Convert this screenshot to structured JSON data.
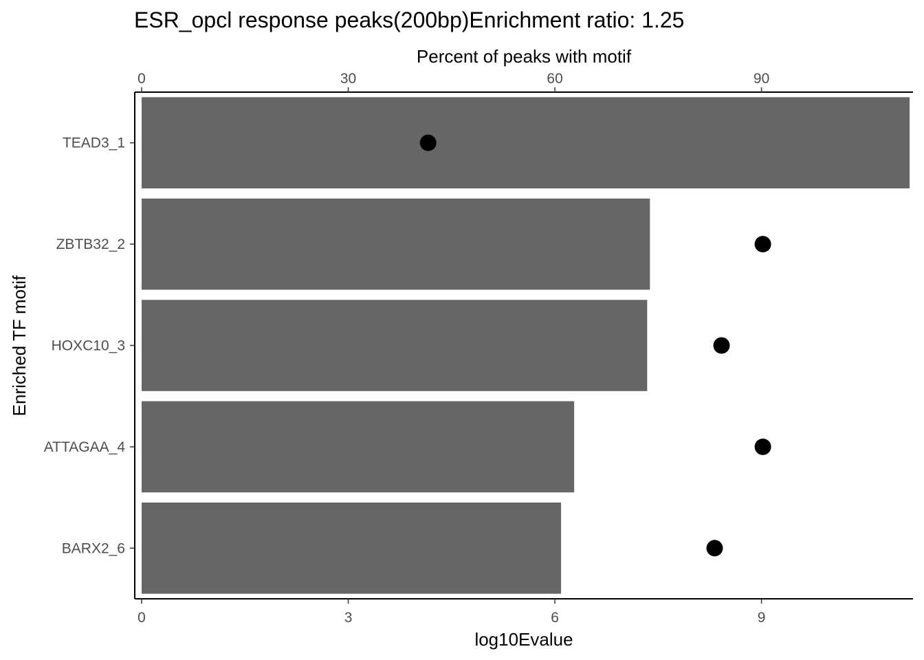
{
  "chart_data": {
    "type": "bar",
    "title": "ESR_opcl response peaks(200bp)Enrichment ratio: 1.25",
    "orientation": "horizontal",
    "ylabel": "Enriched TF motif",
    "categories": [
      "TEAD3_1",
      "ZBTB32_2",
      "HOXC10_3",
      "ATTAGAA_4",
      "BARX2_6"
    ],
    "bottom_axis": {
      "label": "log10Evalue",
      "range": [
        -0.1,
        11.2
      ],
      "ticks": [
        0,
        3,
        6,
        9
      ],
      "tick_labels": [
        "0",
        "3",
        "6",
        "9"
      ]
    },
    "top_axis": {
      "label": "Percent of peaks with motif",
      "range": [
        -1,
        112
      ],
      "ticks": [
        0,
        30,
        60,
        90
      ],
      "tick_labels": [
        "0",
        "30",
        "60",
        "90"
      ]
    },
    "series": [
      {
        "mark": "bar",
        "axis": "bottom",
        "color": "#666666",
        "values": [
          11.15,
          7.38,
          7.34,
          6.28,
          6.09
        ]
      },
      {
        "mark": "point",
        "axis": "top",
        "color": "#000000",
        "values": [
          41.6,
          90.2,
          84.2,
          90.2,
          83.2
        ]
      }
    ],
    "grid": false,
    "legend": "none"
  }
}
